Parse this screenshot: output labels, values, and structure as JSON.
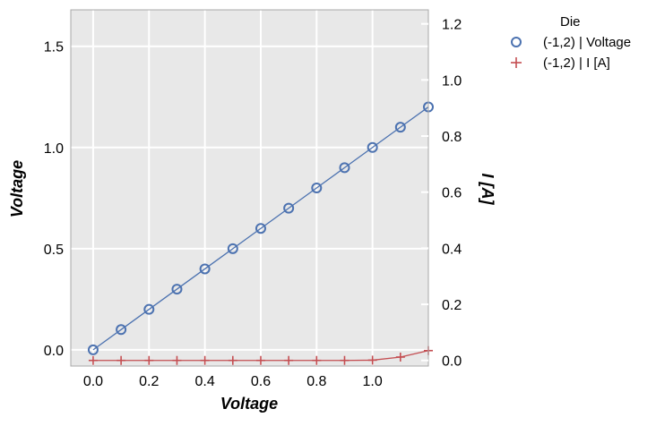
{
  "chart_data": {
    "type": "line",
    "x": [
      0.0,
      0.1,
      0.2,
      0.3,
      0.4,
      0.5,
      0.6,
      0.7,
      0.8,
      0.9,
      1.0,
      1.1,
      1.2
    ],
    "xlim": [
      -0.08,
      1.2
    ],
    "xticks": [
      "0.0",
      "0.2",
      "0.4",
      "0.6",
      "0.8",
      "1.0"
    ],
    "xlabel": "Voltage",
    "left_axis": {
      "label": "Voltage",
      "ylim": [
        -0.08,
        1.68
      ],
      "ticks": [
        "0.0",
        "0.5",
        "1.0",
        "1.5"
      ]
    },
    "right_axis": {
      "label": "I [A]",
      "ylim": [
        -0.02,
        1.25
      ],
      "ticks": [
        "0.0",
        "0.2",
        "0.4",
        "0.6",
        "0.8",
        "1.0",
        "1.2"
      ]
    },
    "series": [
      {
        "name": "(-1,2) | Voltage",
        "axis": "left",
        "marker": "circle",
        "color": "#4c72b0",
        "values": [
          0.0,
          0.1,
          0.2,
          0.3,
          0.4,
          0.5,
          0.6,
          0.7,
          0.8,
          0.9,
          1.0,
          1.1,
          1.2
        ]
      },
      {
        "name": "(-1,2) | I [A]",
        "axis": "right",
        "marker": "plus",
        "color": "#c44e52",
        "values": [
          0.0,
          0.0,
          0.0,
          0.0,
          0.0,
          0.0,
          0.0,
          0.0,
          0.0,
          0.0,
          0.001,
          0.012,
          0.035
        ]
      }
    ],
    "legend": {
      "title": "Die",
      "placement": "outside-top-right"
    },
    "grid": true,
    "background": "#e8e8e8"
  }
}
